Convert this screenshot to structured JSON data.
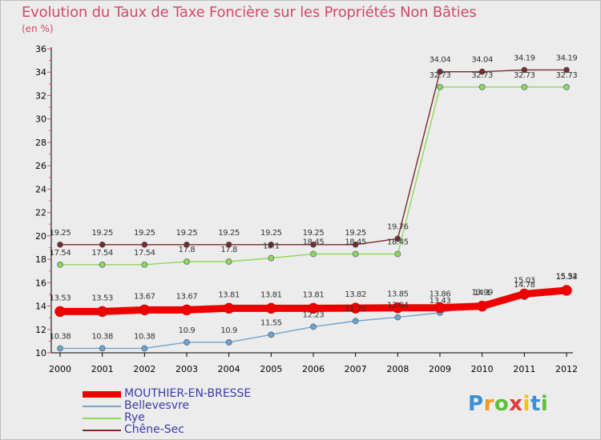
{
  "header": {
    "title": "Evolution du Taux de Taxe Foncière sur les Propriétés Non Bâties",
    "unit": "(en %)"
  },
  "chart_data": {
    "type": "line",
    "title": "Evolution du Taux de Taxe Foncière sur les Propriétés Non Bâties",
    "ylabel": "(en %)",
    "xlabel": "",
    "categories": [
      "2000",
      "2001",
      "2002",
      "2003",
      "2004",
      "2005",
      "2006",
      "2007",
      "2008",
      "2009",
      "2010",
      "2011",
      "2012"
    ],
    "ylim": [
      10,
      36
    ],
    "yticks": [
      10,
      12,
      14,
      16,
      18,
      20,
      22,
      24,
      26,
      28,
      30,
      32,
      34,
      36
    ],
    "grid": false,
    "legend_position": "bottom-left",
    "series": [
      {
        "name": "MOUTHIER-EN-BRESSE",
        "color": "#ee0000",
        "values": [
          13.53,
          13.53,
          13.67,
          13.67,
          13.81,
          13.81,
          13.81,
          13.82,
          13.85,
          13.86,
          13.99,
          15.03,
          15.34
        ],
        "labels": [
          "13.53",
          "13.53",
          "13.67",
          "13.67",
          "13.81",
          "13.81",
          "13.81",
          "13.82",
          "13.85",
          "13.86",
          "13.99",
          "15.03",
          "15.34"
        ]
      },
      {
        "name": "Bellevesvre",
        "color": "#6fa3cf",
        "values": [
          10.38,
          10.38,
          10.38,
          10.9,
          10.9,
          11.55,
          12.23,
          12.72,
          13.04,
          13.43,
          14.1,
          14.78,
          15.52
        ],
        "labels": [
          "10.38",
          "10.38",
          "10.38",
          "10.9",
          "10.9",
          "11.55",
          "12.23",
          "12.72",
          "13.04",
          "13.43",
          "14.1",
          "14.78",
          "15.52"
        ]
      },
      {
        "name": "Rye",
        "color": "#8fd85a",
        "values": [
          17.54,
          17.54,
          17.54,
          17.8,
          17.8,
          18.1,
          18.45,
          18.45,
          18.45,
          32.73,
          32.73,
          32.73,
          32.73
        ],
        "labels": [
          "17.54",
          "17.54",
          "17.54",
          "17.8",
          "17.8",
          "18.1",
          "18.45",
          "18.45",
          "18.45",
          "32.73",
          "32.73",
          "32.73",
          "32.73"
        ]
      },
      {
        "name": "Chêne-Sec",
        "color": "#7a2a2a",
        "values": [
          19.25,
          19.25,
          19.25,
          19.25,
          19.25,
          19.25,
          19.25,
          19.25,
          19.76,
          34.04,
          34.04,
          34.19,
          34.19
        ],
        "labels": [
          "19.25",
          "19.25",
          "19.25",
          "19.25",
          "19.25",
          "19.25",
          "19.25",
          "19.25",
          "19.76",
          "34.04",
          "34.04",
          "34.19",
          "34.19"
        ]
      }
    ]
  },
  "legend": {
    "items": [
      {
        "label": "MOUTHIER-EN-BRESSE",
        "color": "#ee0000",
        "weight": "thick"
      },
      {
        "label": "Bellevesvre",
        "color": "#6fa3cf",
        "weight": "thin"
      },
      {
        "label": "Rye",
        "color": "#8fd85a",
        "weight": "thin"
      },
      {
        "label": "Chêne-Sec",
        "color": "#7a2a2a",
        "weight": "thin"
      }
    ]
  },
  "logo": {
    "letters": [
      "P",
      "r",
      "o",
      "x",
      "i",
      "t",
      "i"
    ],
    "colors": [
      "#3b8fd6",
      "#f29a1a",
      "#5cbf3a",
      "#e03a3a",
      "#f2c11a",
      "#3b8fd6",
      "#5cbf3a"
    ],
    "text": "Proxiti"
  }
}
